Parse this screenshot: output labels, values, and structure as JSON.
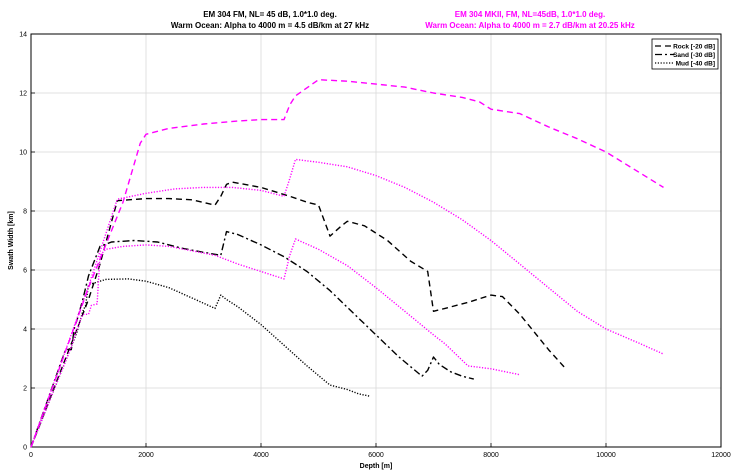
{
  "titles": {
    "black_line1": "EM 304  FM,  NL= 45 dB, 1.0*1.0 deg.",
    "black_line2": "Warm Ocean: Alpha to 4000 m = 4.5 dB/km at 27 kHz",
    "magenta_line1": "EM 304 MKII, FM, NL=45dB, 1.0*1.0 deg.",
    "magenta_line2": "Warm Ocean: Alpha to 4000 m = 2.7 dB/km at 20.25 kHz"
  },
  "colors": {
    "black": "#000000",
    "magenta": "#ff00ff",
    "grid": "#d9d9d9"
  },
  "chart_data": {
    "type": "line",
    "xlabel": "Depth [m]",
    "ylabel": "Swath Width [km]",
    "xlim": [
      0,
      12000
    ],
    "ylim": [
      0,
      14
    ],
    "xticks": [
      0,
      2000,
      4000,
      6000,
      8000,
      10000,
      12000
    ],
    "yticks": [
      0,
      2,
      4,
      6,
      8,
      10,
      12,
      14
    ],
    "grid": true,
    "legend_position": "top-right",
    "legend": [
      {
        "label": "Rock  [-20 dB]",
        "dash": "dashed"
      },
      {
        "label": "Sand  [-30 dB]",
        "dash": "dashdot"
      },
      {
        "label": "Mud   [-40 dB]",
        "dash": "dotted"
      }
    ],
    "series": [
      {
        "name": "Rock  [-20 dB]",
        "color": "#000000",
        "dash": "dashed",
        "x": [
          0,
          700,
          1000,
          1200,
          1500,
          1700,
          2000,
          2400,
          2800,
          3200,
          3300,
          3400,
          3500,
          4000,
          4500,
          4800,
          5000,
          5200,
          5400,
          5500,
          5800,
          6200,
          6600,
          6900,
          7000,
          7200,
          7600,
          8000,
          8200,
          8500,
          9000,
          9300
        ],
        "y": [
          0,
          3.5,
          5.0,
          6.2,
          8.35,
          8.38,
          8.42,
          8.42,
          8.38,
          8.2,
          8.5,
          8.9,
          8.98,
          8.8,
          8.5,
          8.3,
          8.2,
          7.15,
          7.5,
          7.65,
          7.5,
          7.0,
          6.3,
          5.95,
          4.6,
          4.7,
          4.9,
          5.15,
          5.1,
          4.5,
          3.3,
          2.65
        ]
      },
      {
        "name": "Sand  [-30 dB]",
        "color": "#000000",
        "dash": "dashdot",
        "x": [
          0,
          600,
          700,
          760,
          800,
          900,
          1000,
          1200,
          1400,
          1800,
          2200,
          2600,
          3000,
          3300,
          3400,
          3600,
          4000,
          4400,
          4800,
          5200,
          5600,
          6000,
          6400,
          6800,
          6900,
          7000,
          7100,
          7300,
          7500,
          7700
        ],
        "y": [
          0,
          3.3,
          3.3,
          4.1,
          4.3,
          5.0,
          5.8,
          6.8,
          6.95,
          7.0,
          6.95,
          6.75,
          6.6,
          6.5,
          7.3,
          7.2,
          6.85,
          6.45,
          5.95,
          5.3,
          4.55,
          3.8,
          3.05,
          2.4,
          2.6,
          3.05,
          2.8,
          2.55,
          2.4,
          2.3
        ]
      },
      {
        "name": "Mud   [-40 dB]",
        "color": "#000000",
        "dash": "dotted",
        "x": [
          0,
          700,
          800,
          900,
          950,
          1000,
          1300,
          1700,
          2000,
          2400,
          2800,
          3200,
          3300,
          3400,
          3600,
          4000,
          4400,
          4800,
          5200,
          5500,
          5700,
          5900
        ],
        "y": [
          0,
          3.4,
          3.9,
          4.6,
          4.8,
          5.5,
          5.68,
          5.7,
          5.62,
          5.4,
          5.05,
          4.7,
          5.15,
          5.0,
          4.75,
          4.15,
          3.45,
          2.75,
          2.1,
          1.95,
          1.8,
          1.72
        ]
      },
      {
        "name": "",
        "color": "#ff00ff",
        "dash": "dashed",
        "x": [
          0,
          1000,
          1600,
          1900,
          2000,
          2400,
          3000,
          3600,
          4000,
          4400,
          4500,
          4600,
          5000,
          5500,
          6000,
          6500,
          7000,
          7500,
          7800,
          8000,
          8500,
          9000,
          9500,
          10000,
          10500,
          11000
        ],
        "y": [
          0,
          5.4,
          8.3,
          10.3,
          10.6,
          10.8,
          10.95,
          11.05,
          11.1,
          11.1,
          11.6,
          11.9,
          12.45,
          12.4,
          12.3,
          12.2,
          12.0,
          11.85,
          11.7,
          11.45,
          11.3,
          10.85,
          10.45,
          10.0,
          9.4,
          8.8
        ]
      },
      {
        "name": "",
        "color": "#ff00ff",
        "dash": "dotted",
        "x": [
          0,
          1000,
          1500,
          2000,
          2500,
          3000,
          3500,
          4000,
          4400,
          4500,
          4600,
          5000,
          5500,
          6000,
          6500,
          7000,
          7500,
          8000,
          8500,
          9000,
          9500,
          10000,
          10300,
          10600,
          11000
        ],
        "y": [
          0,
          5.45,
          8.4,
          8.6,
          8.75,
          8.8,
          8.8,
          8.7,
          8.5,
          9.1,
          9.75,
          9.65,
          9.5,
          9.2,
          8.8,
          8.3,
          7.7,
          7.0,
          6.2,
          5.4,
          4.6,
          4.0,
          3.75,
          3.5,
          3.15
        ]
      },
      {
        "name": "",
        "color": "#ff00ff",
        "dash": "dotted",
        "x": [
          0,
          700,
          800,
          900,
          1000,
          1050,
          1150,
          1200,
          1300,
          1600,
          2000,
          2400,
          2800,
          3200,
          3600,
          4000,
          4400,
          4500,
          4600,
          5000,
          5500,
          6000,
          6500,
          7000,
          7200,
          7600,
          8000,
          8500
        ],
        "y": [
          0,
          3.4,
          4.0,
          4.5,
          4.5,
          4.8,
          4.85,
          6.5,
          6.7,
          6.8,
          6.85,
          6.8,
          6.65,
          6.5,
          6.2,
          5.95,
          5.7,
          6.5,
          7.05,
          6.7,
          6.15,
          5.4,
          4.6,
          3.8,
          3.5,
          2.75,
          2.65,
          2.45
        ]
      }
    ]
  }
}
